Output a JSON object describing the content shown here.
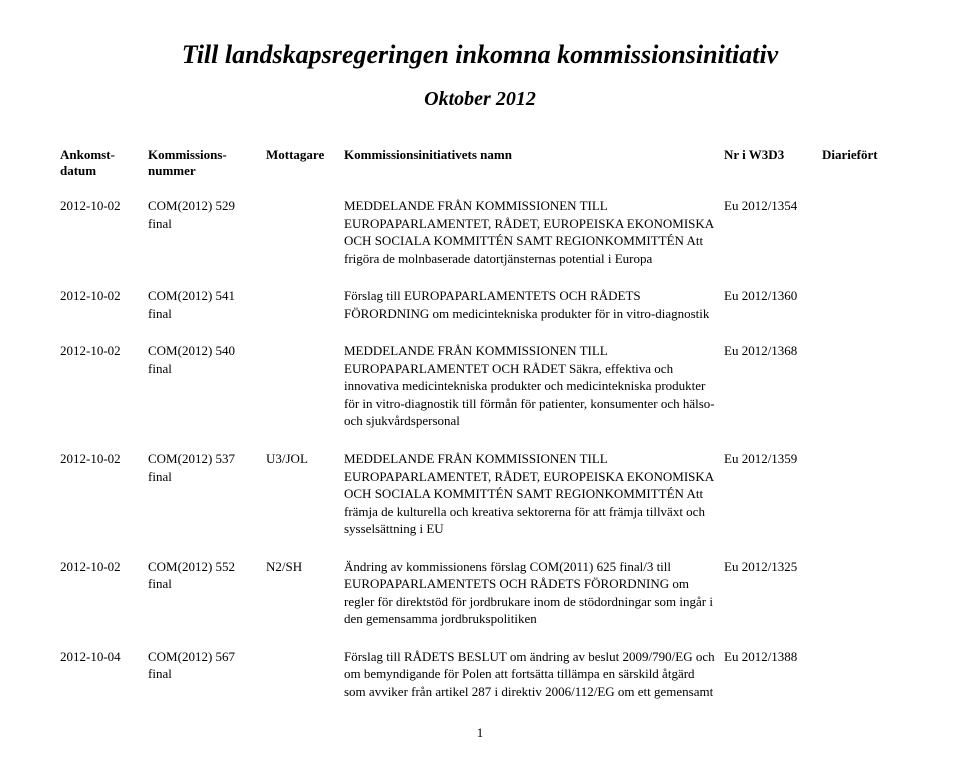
{
  "title": "Till landskapsregeringen inkomna kommissionsinitiativ",
  "subtitle": "Oktober 2012",
  "columns": {
    "date": "Ankomst-\ndatum",
    "num": "Kommissions-\nnummer",
    "recv": "Mottagare",
    "name": "Kommissionsinitiativets namn",
    "nr": "Nr i W3D3",
    "diar": "Diariefört"
  },
  "rows": [
    {
      "date": "2012-10-02",
      "num": "COM(2012) 529 final",
      "recv": "",
      "name": "MEDDELANDE FRÅN KOMMISSIONEN TILL EUROPAPARLAMENTET, RÅDET, EUROPEISKA EKONOMISKA OCH SOCIALA KOMMITTÉN SAMT REGIONKOMMITTÉN Att frigöra de molnbaserade datortjänsternas potential i Europa",
      "nr": "Eu 2012/1354",
      "diar": ""
    },
    {
      "date": "2012-10-02",
      "num": "COM(2012) 541 final",
      "recv": "",
      "name": "Förslag till EUROPAPARLAMENTETS OCH RÅDETS FÖRORDNING om medicintekniska produkter för in vitro-diagnostik",
      "nr": "Eu 2012/1360",
      "diar": ""
    },
    {
      "date": "2012-10-02",
      "num": "COM(2012) 540 final",
      "recv": "",
      "name": "MEDDELANDE FRÅN KOMMISSIONEN TILL EUROPAPARLAMENTET OCH RÅDET Säkra, effektiva och innovativa medicintekniska produkter och medicintekniska produkter för in vitro-diagnostik till förmån för patienter, konsumenter och hälso- och sjukvårdspersonal",
      "nr": "Eu 2012/1368",
      "diar": ""
    },
    {
      "date": "2012-10-02",
      "num": "COM(2012) 537 final",
      "recv": "U3/JOL",
      "name": "MEDDELANDE FRÅN KOMMISSIONEN TILL EUROPAPARLAMENTET, RÅDET, EUROPEISKA EKONOMISKA OCH SOCIALA KOMMITTÉN SAMT REGIONKOMMITTÉN Att främja de kulturella och kreativa sektorerna för att främja tillväxt och sysselsättning i EU",
      "nr": "Eu 2012/1359",
      "diar": ""
    },
    {
      "date": "2012-10-02",
      "num": "COM(2012) 552 final",
      "recv": "N2/SH",
      "name": "Ändring av kommissionens förslag COM(2011) 625 final/3 till EUROPAPARLAMENTETS OCH RÅDETS FÖRORDNING om regler för direktstöd för jordbrukare inom de stödordningar som ingår i den gemensamma jordbrukspolitiken",
      "nr": "Eu 2012/1325",
      "diar": ""
    },
    {
      "date": "2012-10-04",
      "num": "COM(2012) 567 final",
      "recv": "",
      "name": "Förslag till RÅDETS BESLUT om ändring av beslut 2009/790/EG och om bemyndigande för Polen att fortsätta tillämpa en särskild åtgärd som avviker från artikel 287 i direktiv 2006/112/EG om ett gemensamt",
      "nr": "Eu 2012/1388",
      "diar": ""
    }
  ],
  "page_number": "1"
}
